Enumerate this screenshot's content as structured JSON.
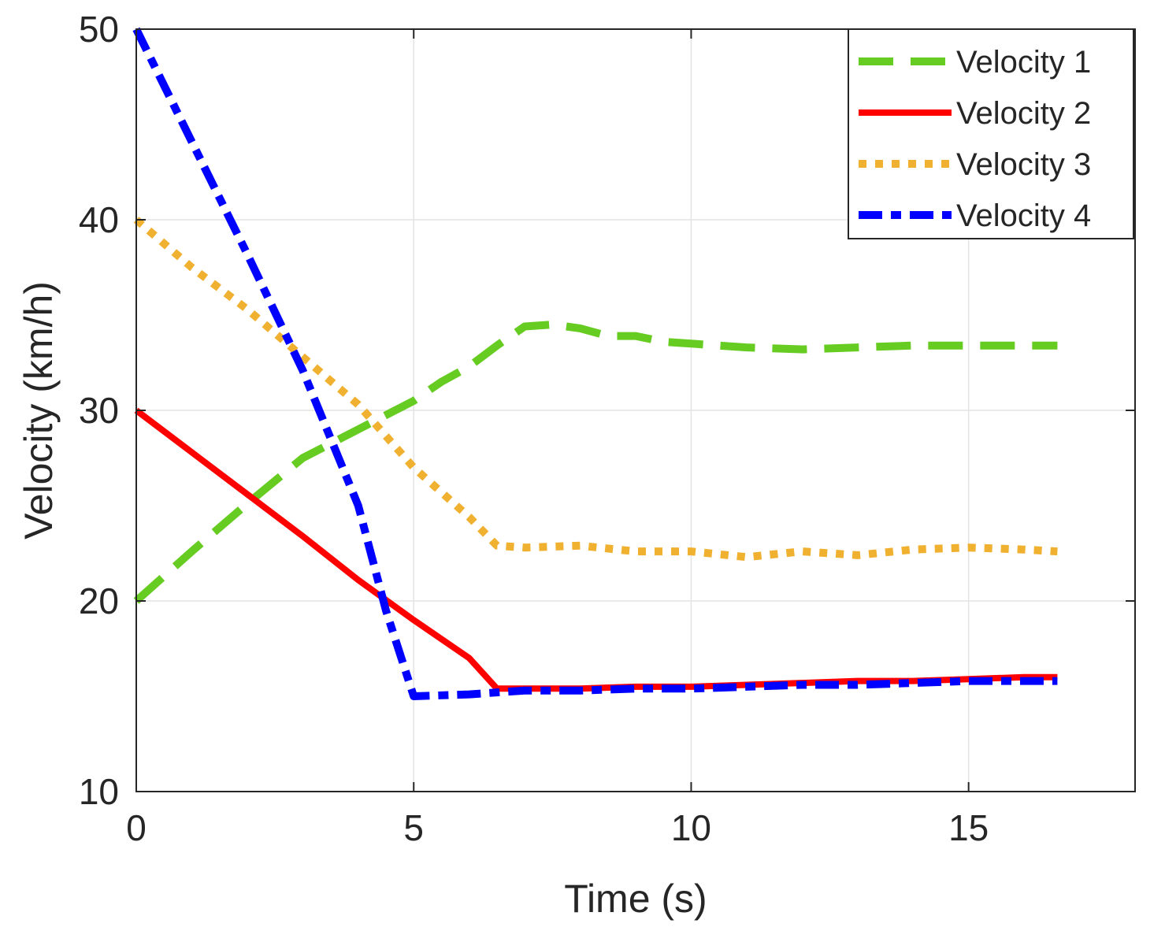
{
  "chart_data": {
    "type": "line",
    "title": "",
    "xlabel": "Time (s)",
    "ylabel": "Velocity (km/h)",
    "xlim": [
      0,
      18
    ],
    "ylim": [
      10,
      50
    ],
    "xticks": [
      0,
      5,
      10,
      15
    ],
    "yticks": [
      10,
      20,
      30,
      40,
      50
    ],
    "grid": true,
    "legend_position": "top-right",
    "series": [
      {
        "name": "Velocity 1",
        "color": "#66cc22",
        "style": "dashed",
        "points": [
          [
            0,
            20
          ],
          [
            1,
            22.6
          ],
          [
            2,
            25.1
          ],
          [
            3,
            27.5
          ],
          [
            4,
            29.0
          ],
          [
            5,
            30.5
          ],
          [
            5.5,
            31.5
          ],
          [
            6,
            32.3
          ],
          [
            6.5,
            33.4
          ],
          [
            7,
            34.4
          ],
          [
            7.5,
            34.5
          ],
          [
            8,
            34.3
          ],
          [
            8.5,
            33.9
          ],
          [
            9,
            33.9
          ],
          [
            9.5,
            33.6
          ],
          [
            10,
            33.5
          ],
          [
            11,
            33.3
          ],
          [
            12,
            33.2
          ],
          [
            13,
            33.3
          ],
          [
            14,
            33.4
          ],
          [
            15,
            33.4
          ],
          [
            16,
            33.4
          ],
          [
            16.6,
            33.4
          ]
        ]
      },
      {
        "name": "Velocity 2",
        "color": "#ff0000",
        "style": "solid",
        "points": [
          [
            0,
            30
          ],
          [
            1,
            27.8
          ],
          [
            2,
            25.6
          ],
          [
            3,
            23.4
          ],
          [
            4,
            21.1
          ],
          [
            5,
            19
          ],
          [
            6,
            17
          ],
          [
            6.5,
            15.4
          ],
          [
            7,
            15.4
          ],
          [
            8,
            15.4
          ],
          [
            9,
            15.5
          ],
          [
            10,
            15.5
          ],
          [
            11,
            15.6
          ],
          [
            12,
            15.7
          ],
          [
            13,
            15.8
          ],
          [
            14,
            15.8
          ],
          [
            15,
            15.9
          ],
          [
            16,
            16.0
          ],
          [
            16.6,
            16.0
          ]
        ]
      },
      {
        "name": "Velocity 3",
        "color": "#f0b030",
        "style": "dotted",
        "points": [
          [
            0,
            40
          ],
          [
            1,
            37.5
          ],
          [
            2,
            35.3
          ],
          [
            3,
            32.8
          ],
          [
            4,
            30.3
          ],
          [
            5,
            27
          ],
          [
            6,
            24.4
          ],
          [
            6.5,
            22.9
          ],
          [
            7,
            22.8
          ],
          [
            8,
            22.9
          ],
          [
            9,
            22.6
          ],
          [
            10,
            22.6
          ],
          [
            11,
            22.3
          ],
          [
            12,
            22.6
          ],
          [
            13,
            22.4
          ],
          [
            14,
            22.7
          ],
          [
            15,
            22.8
          ],
          [
            16,
            22.7
          ],
          [
            16.6,
            22.6
          ]
        ]
      },
      {
        "name": "Velocity 4",
        "color": "#0000ff",
        "style": "dashdot",
        "points": [
          [
            0,
            50
          ],
          [
            1,
            44.1
          ],
          [
            2,
            38.2
          ],
          [
            3,
            32.1
          ],
          [
            4,
            25
          ],
          [
            4.5,
            19.5
          ],
          [
            5,
            15
          ],
          [
            6,
            15.1
          ],
          [
            7,
            15.3
          ],
          [
            8,
            15.3
          ],
          [
            9,
            15.4
          ],
          [
            10,
            15.4
          ],
          [
            11,
            15.5
          ],
          [
            12,
            15.6
          ],
          [
            13,
            15.6
          ],
          [
            14,
            15.7
          ],
          [
            15,
            15.8
          ],
          [
            16,
            15.8
          ],
          [
            16.6,
            15.8
          ]
        ]
      }
    ]
  }
}
